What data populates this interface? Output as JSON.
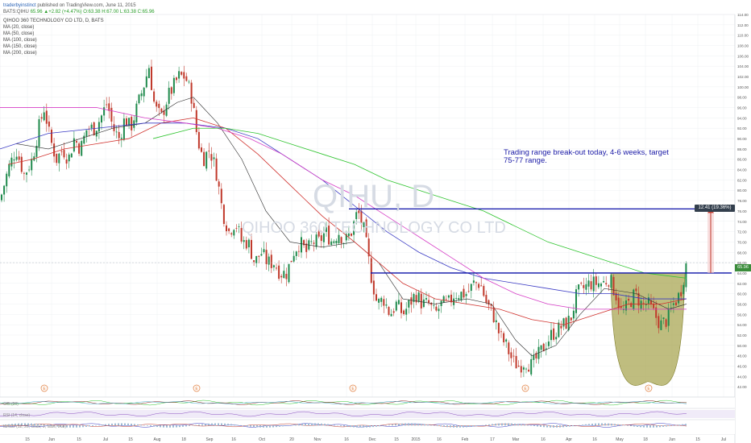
{
  "header": {
    "author": "traderbyinstinct",
    "published": "published on TradingView.com, June 11, 2015",
    "symbol": "BATS:QIHU",
    "quote": "65.96 ▲+2.82 (+4.47%) O:63.38 H:67.00 L:63.38 C:65.96"
  },
  "legend": {
    "title": "QIHOO 360 TECHNOLOGY CO LTD, D, BATS",
    "ma20": "MA (20, close)",
    "ma50": "MA (50, close)",
    "ma100": "MA (100, close)",
    "ma150": "MA (150, close)",
    "ma200": "MA (200, close)"
  },
  "watermark": {
    "ticker": "QIHU, D",
    "name": "QIHOO 360 TECHNOLOGY CO LTD"
  },
  "annotation": {
    "text": "Trading range break-out today, 4-6 weeks, target 75-77 range."
  },
  "measure_label": "12.41 (19.36%)",
  "last_price_label": "65.96",
  "indicators": {
    "a": "CCI (20)",
    "b": "RSI (14, close)",
    "c": "MACD (12, 26, close, 9, false, true)"
  },
  "colors": {
    "ma20": "#2b2b2b",
    "ma50": "#d0312d",
    "ma100": "#3b3bc4",
    "ma150": "#d63ec6",
    "ma200": "#2fc42f",
    "level": "#0b10a8",
    "bowl": "#9c9a3a",
    "up": "#1f8a4c",
    "down": "#c0392b",
    "target_arrow": "#c0392b"
  },
  "chart_data": {
    "type": "line",
    "xlabel": "",
    "ylabel": "",
    "ylim": [
      40,
      114
    ],
    "y_ticks": [
      42,
      44,
      46,
      48,
      50,
      52,
      54,
      56,
      58,
      60,
      62,
      64,
      66,
      68,
      70,
      72,
      74,
      76,
      78,
      80,
      82,
      84,
      86,
      88,
      90,
      92,
      94,
      96,
      98,
      100,
      102,
      104,
      106,
      108,
      110,
      112,
      114
    ],
    "x_ticks": [
      "15",
      "Jun",
      "15",
      "Jul",
      "15",
      "Aug",
      "18",
      "Sep",
      "16",
      "Oct",
      "20",
      "Nov",
      "16",
      "Dec",
      "15",
      "2015",
      "16",
      "Feb",
      "17",
      "Mar",
      "16",
      "Apr",
      "16",
      "May",
      "18",
      "Jun",
      "15",
      "Jul"
    ],
    "x_tick_pos": [
      34,
      64,
      98,
      131,
      162,
      195,
      228,
      260,
      290,
      325,
      362,
      394,
      430,
      462,
      492,
      516,
      545,
      577,
      611,
      640,
      674,
      706,
      738,
      769,
      801,
      834,
      866,
      898
    ],
    "levels": {
      "breakout": 64.0,
      "target": 76.4
    },
    "close_path": [
      [
        0,
        78
      ],
      [
        10,
        84
      ],
      [
        20,
        88
      ],
      [
        30,
        83
      ],
      [
        40,
        86
      ],
      [
        48,
        92
      ],
      [
        55,
        96
      ],
      [
        62,
        90
      ],
      [
        70,
        86
      ],
      [
        78,
        88
      ],
      [
        85,
        86
      ],
      [
        92,
        90
      ],
      [
        100,
        88
      ],
      [
        108,
        92
      ],
      [
        118,
        92
      ],
      [
        125,
        94
      ],
      [
        133,
        97
      ],
      [
        140,
        92
      ],
      [
        148,
        90
      ],
      [
        155,
        94
      ],
      [
        162,
        92
      ],
      [
        170,
        96
      ],
      [
        178,
        100
      ],
      [
        185,
        104
      ],
      [
        192,
        96
      ],
      [
        200,
        94
      ],
      [
        208,
        98
      ],
      [
        215,
        100
      ],
      [
        222,
        102
      ],
      [
        230,
        102
      ],
      [
        238,
        98
      ],
      [
        245,
        90
      ],
      [
        252,
        86
      ],
      [
        260,
        88
      ],
      [
        268,
        84
      ],
      [
        276,
        76
      ],
      [
        284,
        72
      ],
      [
        292,
        74
      ],
      [
        300,
        70
      ],
      [
        308,
        70
      ],
      [
        316,
        66
      ],
      [
        324,
        68
      ],
      [
        332,
        66
      ],
      [
        340,
        66
      ],
      [
        348,
        64
      ],
      [
        356,
        64
      ],
      [
        364,
        68
      ],
      [
        372,
        70
      ],
      [
        380,
        68
      ],
      [
        388,
        70
      ],
      [
        396,
        70
      ],
      [
        404,
        72
      ],
      [
        412,
        70
      ],
      [
        420,
        72
      ],
      [
        428,
        70
      ],
      [
        436,
        72
      ],
      [
        444,
        76
      ],
      [
        452,
        72
      ],
      [
        460,
        64
      ],
      [
        468,
        58
      ],
      [
        476,
        59
      ],
      [
        484,
        56
      ],
      [
        492,
        58
      ],
      [
        500,
        56
      ],
      [
        508,
        58
      ],
      [
        516,
        60
      ],
      [
        524,
        58
      ],
      [
        532,
        58
      ],
      [
        540,
        56
      ],
      [
        548,
        58
      ],
      [
        556,
        58
      ],
      [
        564,
        60
      ],
      [
        572,
        60
      ],
      [
        580,
        60
      ],
      [
        588,
        62
      ],
      [
        596,
        62
      ],
      [
        604,
        58
      ],
      [
        612,
        56
      ],
      [
        620,
        52
      ],
      [
        628,
        50
      ],
      [
        636,
        47
      ],
      [
        644,
        46
      ],
      [
        652,
        47
      ],
      [
        660,
        46
      ],
      [
        668,
        48
      ],
      [
        676,
        50
      ],
      [
        684,
        52
      ],
      [
        692,
        53
      ],
      [
        700,
        54
      ],
      [
        708,
        55
      ],
      [
        716,
        60
      ],
      [
        724,
        61
      ],
      [
        732,
        62
      ],
      [
        740,
        62
      ],
      [
        748,
        62
      ],
      [
        756,
        63
      ],
      [
        764,
        60
      ],
      [
        772,
        56
      ],
      [
        780,
        58
      ],
      [
        788,
        60
      ],
      [
        796,
        58
      ],
      [
        804,
        58
      ],
      [
        812,
        56
      ],
      [
        820,
        54
      ],
      [
        828,
        55
      ],
      [
        836,
        58
      ],
      [
        844,
        60
      ],
      [
        852,
        66
      ]
    ],
    "series": [
      {
        "name": "MA (20, close)",
        "points": [
          [
            20,
            89
          ],
          [
            60,
            88
          ],
          [
            100,
            90
          ],
          [
            140,
            92
          ],
          [
            180,
            93
          ],
          [
            220,
            97
          ],
          [
            240,
            98
          ],
          [
            270,
            93
          ],
          [
            300,
            86
          ],
          [
            330,
            76
          ],
          [
            360,
            70
          ],
          [
            400,
            69
          ],
          [
            440,
            70
          ],
          [
            470,
            66
          ],
          [
            500,
            59
          ],
          [
            540,
            58
          ],
          [
            580,
            59
          ],
          [
            610,
            58
          ],
          [
            640,
            51
          ],
          [
            660,
            48
          ],
          [
            690,
            50
          ],
          [
            720,
            56
          ],
          [
            750,
            61
          ],
          [
            790,
            60
          ],
          [
            830,
            57
          ],
          [
            852,
            58
          ]
        ]
      },
      {
        "name": "MA (50, close)",
        "points": [
          [
            10,
            85
          ],
          [
            40,
            86
          ],
          [
            80,
            88
          ],
          [
            120,
            89
          ],
          [
            160,
            90
          ],
          [
            200,
            93
          ],
          [
            240,
            94
          ],
          [
            280,
            92
          ],
          [
            320,
            87
          ],
          [
            360,
            81
          ],
          [
            400,
            75
          ],
          [
            440,
            70
          ],
          [
            470,
            66
          ],
          [
            500,
            62
          ],
          [
            540,
            59
          ],
          [
            580,
            58
          ],
          [
            620,
            57
          ],
          [
            660,
            55
          ],
          [
            700,
            54
          ],
          [
            740,
            56
          ],
          [
            780,
            58
          ],
          [
            820,
            58
          ],
          [
            852,
            59
          ]
        ]
      },
      {
        "name": "MA (100, close)",
        "points": [
          [
            0,
            88
          ],
          [
            60,
            91
          ],
          [
            120,
            92
          ],
          [
            180,
            93
          ],
          [
            230,
            93
          ],
          [
            280,
            92
          ],
          [
            320,
            90
          ],
          [
            360,
            86
          ],
          [
            400,
            82
          ],
          [
            440,
            77
          ],
          [
            480,
            72
          ],
          [
            520,
            68
          ],
          [
            560,
            65
          ],
          [
            600,
            63
          ],
          [
            640,
            62
          ],
          [
            680,
            61
          ],
          [
            720,
            60
          ],
          [
            760,
            60
          ],
          [
            800,
            59
          ],
          [
            852,
            59
          ]
        ]
      },
      {
        "name": "MA (150, close)",
        "points": [
          [
            0,
            96
          ],
          [
            60,
            96
          ],
          [
            120,
            96
          ],
          [
            180,
            94
          ],
          [
            230,
            93
          ],
          [
            270,
            92
          ],
          [
            310,
            90
          ],
          [
            350,
            87
          ],
          [
            400,
            82
          ],
          [
            440,
            79
          ],
          [
            480,
            75
          ],
          [
            520,
            71
          ],
          [
            560,
            67
          ],
          [
            600,
            63
          ],
          [
            640,
            60
          ],
          [
            680,
            58
          ],
          [
            720,
            57
          ],
          [
            760,
            57
          ],
          [
            800,
            57
          ],
          [
            852,
            57
          ]
        ]
      },
      {
        "name": "MA (200, close)",
        "points": [
          [
            190,
            90
          ],
          [
            240,
            92
          ],
          [
            280,
            92
          ],
          [
            320,
            91
          ],
          [
            360,
            89
          ],
          [
            400,
            87
          ],
          [
            440,
            85
          ],
          [
            480,
            82
          ],
          [
            520,
            80
          ],
          [
            560,
            78
          ],
          [
            600,
            76
          ],
          [
            640,
            73
          ],
          [
            680,
            70
          ],
          [
            720,
            68
          ],
          [
            760,
            66
          ],
          [
            800,
            64
          ],
          [
            852,
            63
          ]
        ]
      }
    ]
  }
}
